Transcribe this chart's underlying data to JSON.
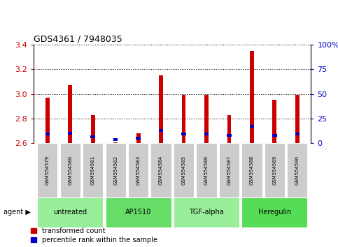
{
  "title": "GDS4361 / 7948035",
  "samples": [
    "GSM554579",
    "GSM554580",
    "GSM554581",
    "GSM554582",
    "GSM554583",
    "GSM554584",
    "GSM554585",
    "GSM554586",
    "GSM554587",
    "GSM554588",
    "GSM554589",
    "GSM554590"
  ],
  "red_values": [
    2.97,
    3.07,
    2.83,
    2.61,
    2.68,
    3.15,
    2.99,
    2.99,
    2.83,
    3.35,
    2.95,
    2.99
  ],
  "blue_bottoms": [
    2.665,
    2.67,
    2.64,
    2.62,
    2.63,
    2.69,
    2.665,
    2.665,
    2.655,
    2.725,
    2.655,
    2.665
  ],
  "blue_heights": [
    0.022,
    0.022,
    0.022,
    0.022,
    0.022,
    0.022,
    0.022,
    0.022,
    0.022,
    0.022,
    0.022,
    0.022
  ],
  "bar_bottom": 2.6,
  "ylim": [
    2.6,
    3.4
  ],
  "yticks_left": [
    2.6,
    2.8,
    3.0,
    3.2,
    3.4
  ],
  "yticks_right": [
    0,
    25,
    50,
    75,
    100
  ],
  "ytick_right_labels": [
    "0",
    "25",
    "50",
    "75",
    "100%"
  ],
  "red_color": "#cc0000",
  "blue_color": "#0000cc",
  "agent_groups": [
    {
      "label": "untreated",
      "start": 0,
      "end": 2,
      "color": "#99ee99"
    },
    {
      "label": "AP1510",
      "start": 3,
      "end": 5,
      "color": "#66dd66"
    },
    {
      "label": "TGF-alpha",
      "start": 6,
      "end": 8,
      "color": "#99ee99"
    },
    {
      "label": "Heregulin",
      "start": 9,
      "end": 11,
      "color": "#55dd55"
    }
  ],
  "legend_red_label": "transformed count",
  "legend_blue_label": "percentile rank within the sample",
  "grid_color": "black",
  "bar_width": 0.18,
  "bg_color": "#ffffff",
  "gray_color": "#cccccc",
  "title_fontsize": 9,
  "axis_fontsize": 8,
  "sample_fontsize": 5,
  "group_fontsize": 7,
  "legend_fontsize": 7
}
